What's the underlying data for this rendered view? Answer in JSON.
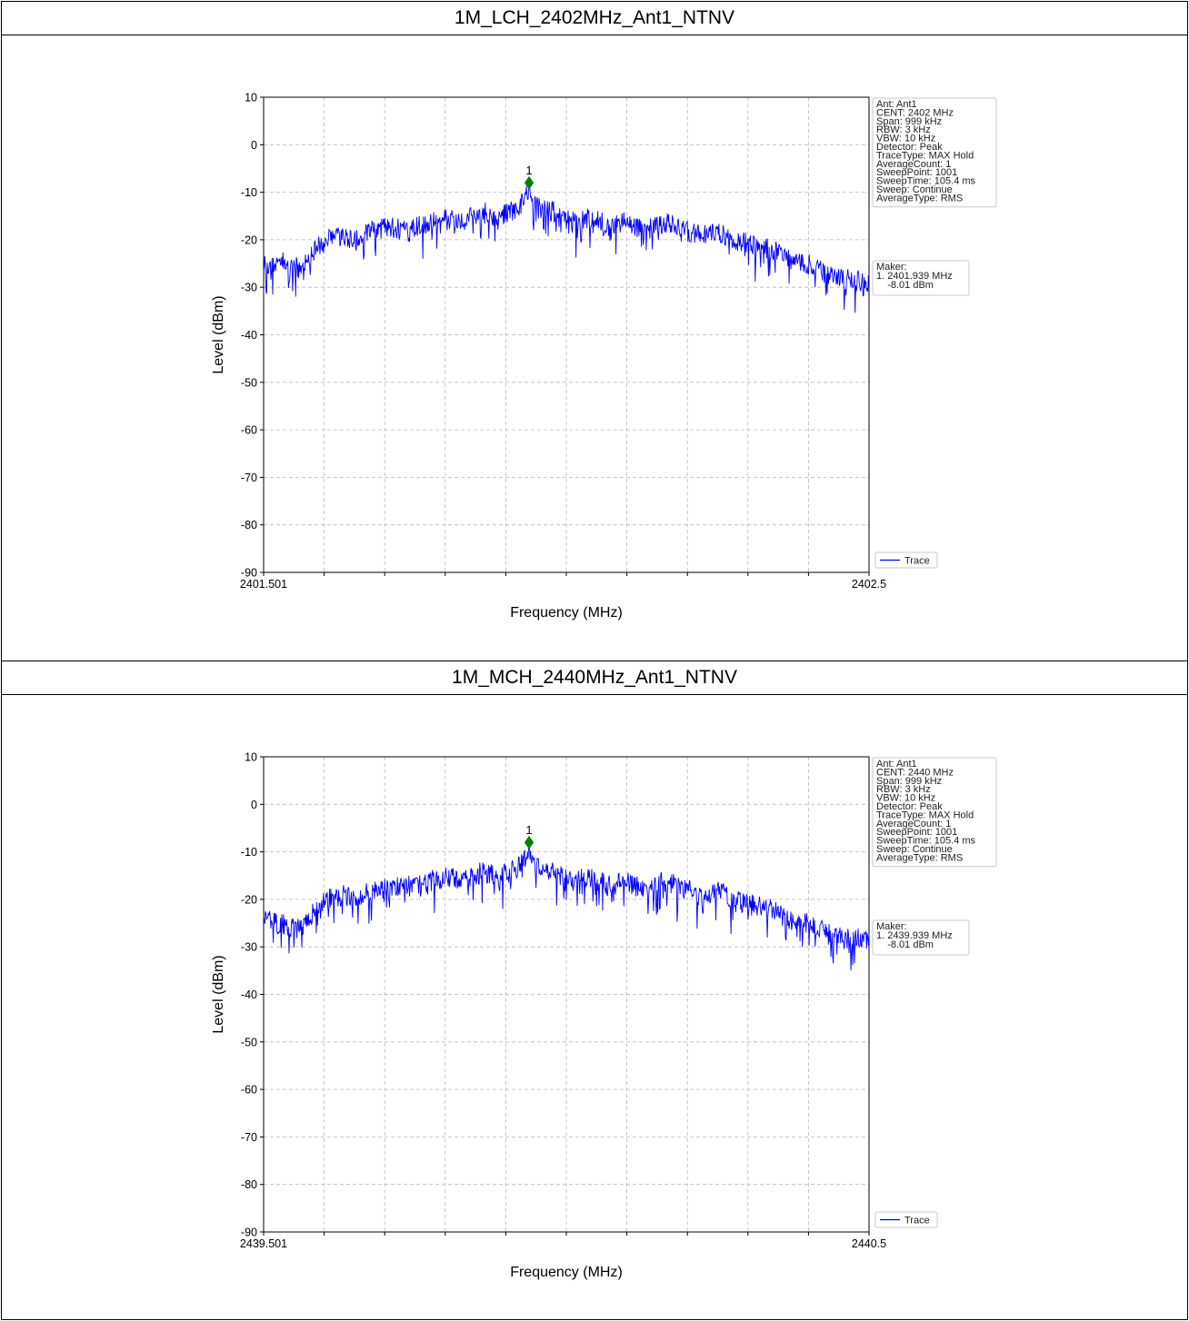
{
  "chart_data": [
    {
      "type": "line",
      "title": "1M_LCH_2402MHz_Ant1_NTNV",
      "xlabel": "Frequency (MHz)",
      "ylabel": "Level (dBm)",
      "xlim": [
        2401.501,
        2402.5
      ],
      "ylim": [
        -90,
        10
      ],
      "x_tick_labels": [
        "2401.501",
        "2402.5"
      ],
      "y_ticks": [
        10,
        0,
        -10,
        -20,
        -30,
        -40,
        -50,
        -60,
        -70,
        -80,
        -90
      ],
      "grid": true,
      "series": [
        {
          "name": "Trace",
          "color": "#0000ff",
          "x": [
            2401.501,
            2401.531,
            2401.561,
            2401.591,
            2401.621,
            2401.651,
            2401.681,
            2401.711,
            2401.741,
            2401.771,
            2401.801,
            2401.831,
            2401.861,
            2401.891,
            2401.921,
            2401.939,
            2401.951,
            2401.981,
            2402.011,
            2402.041,
            2402.071,
            2402.101,
            2402.131,
            2402.161,
            2402.191,
            2402.221,
            2402.251,
            2402.281,
            2402.311,
            2402.341,
            2402.371,
            2402.401,
            2402.431,
            2402.461,
            2402.5
          ],
          "y": [
            -23,
            -22,
            -24,
            -19,
            -17,
            -18,
            -16,
            -15,
            -16,
            -14,
            -13,
            -14,
            -12,
            -13,
            -11,
            -8,
            -11,
            -12,
            -14,
            -13,
            -15,
            -14,
            -16,
            -14,
            -15,
            -17,
            -16,
            -18,
            -19,
            -20,
            -22,
            -23,
            -25,
            -26,
            -27
          ]
        }
      ],
      "marker": {
        "label": "1",
        "x": 2401.939,
        "y": -8.01,
        "color": "#008000"
      },
      "info_lines": [
        "Ant: Ant1",
        "CENT: 2402 MHz",
        "Span: 999 kHz",
        "RBW: 3 kHz",
        "VBW: 10 kHz",
        "Detector: Peak",
        "TraceType: MAX Hold",
        "AverageCount: 1",
        "SweepPoint: 1001",
        "SweepTime: 105.4 ms",
        "Sweep: Continue",
        "AverageType: RMS"
      ],
      "maker_lines": [
        "Maker:",
        "1. 2401.939 MHz",
        "    -8.01 dBm"
      ],
      "legend": {
        "label": "Trace",
        "position": "bottom-right-outside"
      }
    },
    {
      "type": "line",
      "title": "1M_MCH_2440MHz_Ant1_NTNV",
      "xlabel": "Frequency (MHz)",
      "ylabel": "Level (dBm)",
      "xlim": [
        2439.501,
        2440.5
      ],
      "ylim": [
        -90,
        10
      ],
      "x_tick_labels": [
        "2439.501",
        "2440.5"
      ],
      "y_ticks": [
        10,
        0,
        -10,
        -20,
        -30,
        -40,
        -50,
        -60,
        -70,
        -80,
        -90
      ],
      "grid": true,
      "series": [
        {
          "name": "Trace",
          "color": "#0000ff",
          "x": [
            2439.501,
            2439.531,
            2439.561,
            2439.591,
            2439.621,
            2439.651,
            2439.681,
            2439.711,
            2439.741,
            2439.771,
            2439.801,
            2439.831,
            2439.861,
            2439.891,
            2439.921,
            2439.939,
            2439.951,
            2439.981,
            2440.011,
            2440.041,
            2440.071,
            2440.101,
            2440.131,
            2440.161,
            2440.191,
            2440.221,
            2440.251,
            2440.281,
            2440.311,
            2440.341,
            2440.371,
            2440.401,
            2440.431,
            2440.461,
            2440.5
          ],
          "y": [
            -22,
            -23,
            -24,
            -19,
            -17,
            -17,
            -16,
            -15,
            -15,
            -14,
            -13,
            -14,
            -12,
            -13,
            -11,
            -8,
            -11,
            -12,
            -14,
            -13,
            -15,
            -14,
            -16,
            -14,
            -15,
            -17,
            -16,
            -18,
            -19,
            -20,
            -22,
            -23,
            -25,
            -26,
            -26
          ]
        }
      ],
      "marker": {
        "label": "1",
        "x": 2439.939,
        "y": -8.01,
        "color": "#008000"
      },
      "info_lines": [
        "Ant: Ant1",
        "CENT: 2440 MHz",
        "Span: 999 kHz",
        "RBW: 3 kHz",
        "VBW: 10 kHz",
        "Detector: Peak",
        "TraceType: MAX Hold",
        "AverageCount: 1",
        "SweepPoint: 1001",
        "SweepTime: 105.4 ms",
        "Sweep: Continue",
        "AverageType: RMS"
      ],
      "maker_lines": [
        "Maker:",
        "1. 2439.939 MHz",
        "    -8.01 dBm"
      ],
      "legend": {
        "label": "Trace",
        "position": "bottom-right-outside"
      }
    }
  ]
}
